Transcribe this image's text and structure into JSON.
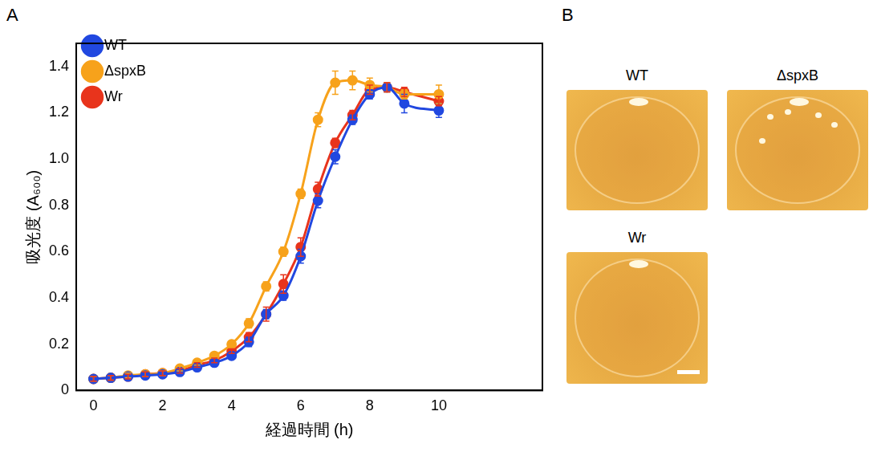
{
  "panel_letters": [
    "A",
    "B"
  ],
  "chart_data": {
    "type": "line",
    "x_label": "経過時間 (h)",
    "y_label": "吸光度 (A₆₀₀)",
    "x": [
      0,
      0.5,
      1,
      1.5,
      2,
      2.5,
      3,
      3.5,
      4,
      4.5,
      5,
      5.5,
      6,
      6.5,
      7,
      7.5,
      8,
      8.5,
      9,
      10
    ],
    "series": [
      {
        "name": "WT",
        "color": "#2148e0",
        "marker": "circle",
        "values": [
          0.05,
          0.055,
          0.06,
          0.065,
          0.07,
          0.08,
          0.1,
          0.12,
          0.15,
          0.21,
          0.33,
          0.41,
          0.58,
          0.82,
          1.01,
          1.17,
          1.28,
          1.31,
          1.24,
          1.21
        ],
        "errors": [
          0.01,
          0.01,
          0.01,
          0.01,
          0.01,
          0.01,
          0.01,
          0.01,
          0.01,
          0.02,
          0.02,
          0.02,
          0.03,
          0.03,
          0.03,
          0.02,
          0.02,
          0.02,
          0.04,
          0.03
        ]
      },
      {
        "name": "ΔspxB",
        "color": "#f7a21b",
        "marker": "circle",
        "values": [
          0.05,
          0.055,
          0.065,
          0.07,
          0.075,
          0.095,
          0.12,
          0.15,
          0.2,
          0.29,
          0.45,
          0.6,
          0.85,
          1.17,
          1.33,
          1.34,
          1.32,
          1.31,
          1.28,
          1.28
        ],
        "errors": [
          0.01,
          0.01,
          0.01,
          0.01,
          0.01,
          0.01,
          0.01,
          0.01,
          0.01,
          0.02,
          0.02,
          0.02,
          0.02,
          0.03,
          0.05,
          0.04,
          0.03,
          0.02,
          0.02,
          0.04
        ]
      },
      {
        "name": "Wr",
        "color": "#e8341c",
        "marker": "circle",
        "values": [
          0.05,
          0.055,
          0.06,
          0.07,
          0.075,
          0.085,
          0.11,
          0.13,
          0.17,
          0.23,
          0.33,
          0.46,
          0.62,
          0.87,
          1.07,
          1.19,
          1.3,
          1.31,
          1.29,
          1.25
        ],
        "errors": [
          0.01,
          0.01,
          0.01,
          0.01,
          0.01,
          0.01,
          0.01,
          0.01,
          0.01,
          0.02,
          0.03,
          0.04,
          0.04,
          0.03,
          0.02,
          0.02,
          0.02,
          0.02,
          0.02,
          0.02
        ]
      }
    ],
    "xlim": [
      -0.5,
      13
    ],
    "xticks": [
      0,
      2,
      4,
      6,
      8,
      10
    ],
    "ylim": [
      0,
      1.5
    ],
    "yticks": [
      0,
      0.2,
      0.4,
      0.6,
      0.8,
      {
        "value": 1,
        "label": "1.0"
      },
      1.2,
      1.4
    ],
    "grid": false,
    "legend": "top-left"
  },
  "photos": [
    "WT",
    "ΔspxB",
    "Wr"
  ]
}
